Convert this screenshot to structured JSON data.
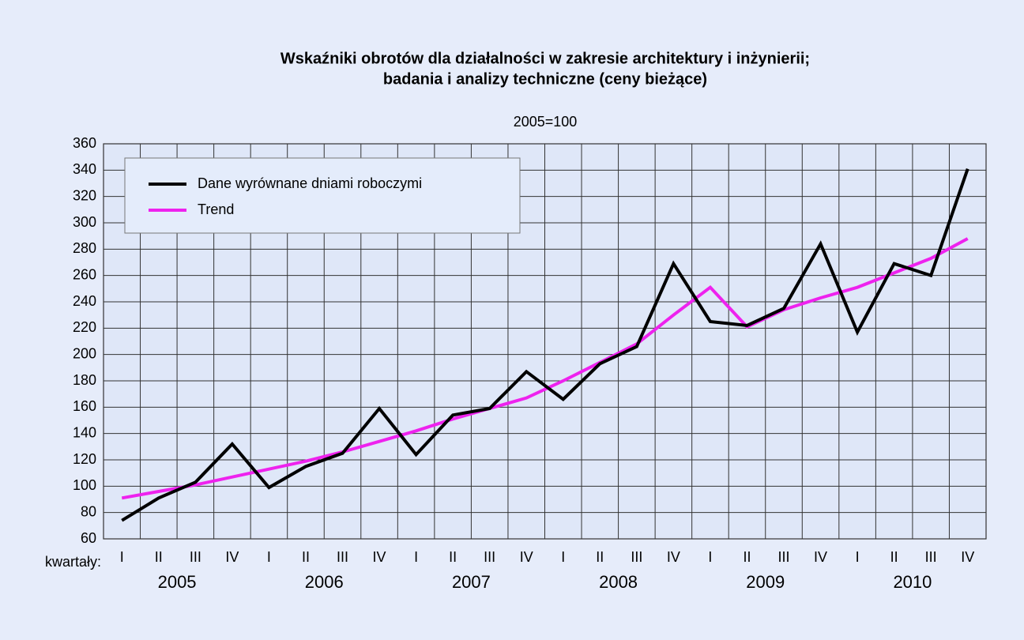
{
  "chart_data": {
    "type": "line",
    "title": [
      "Wskaźniki obrotów dla działalności w zakresie architektury i inżynierii;",
      "badania i analizy techniczne (ceny bieżące)"
    ],
    "subtitle": "2005=100",
    "x_label": "kwartały:",
    "categories": [
      "I",
      "II",
      "III",
      "IV",
      "I",
      "II",
      "III",
      "IV",
      "I",
      "II",
      "III",
      "IV",
      "I",
      "II",
      "III",
      "IV",
      "I",
      "II",
      "III",
      "IV",
      "I",
      "II",
      "III",
      "IV"
    ],
    "years": [
      "2005",
      "2006",
      "2007",
      "2008",
      "2009",
      "2010"
    ],
    "series": [
      {
        "name": "Dane wyrównane dniami roboczymi",
        "color": "#000000",
        "values": [
          74,
          91,
          103,
          132,
          99,
          115,
          125,
          159,
          124,
          154,
          159,
          187,
          166,
          193,
          206,
          269,
          225,
          222,
          235,
          284,
          217,
          269,
          260,
          341
        ]
      },
      {
        "name": "Trend",
        "color": "#ee22ee",
        "values": [
          91,
          96,
          101,
          107,
          113,
          119,
          126,
          134,
          142,
          151,
          159,
          167,
          180,
          194,
          208,
          230,
          251,
          221,
          234,
          243,
          251,
          262,
          273,
          288
        ]
      }
    ],
    "ylim": [
      60,
      360
    ],
    "yticks": [
      60,
      80,
      100,
      120,
      140,
      160,
      180,
      200,
      220,
      240,
      260,
      280,
      300,
      320,
      340,
      360
    ],
    "grid": true
  }
}
